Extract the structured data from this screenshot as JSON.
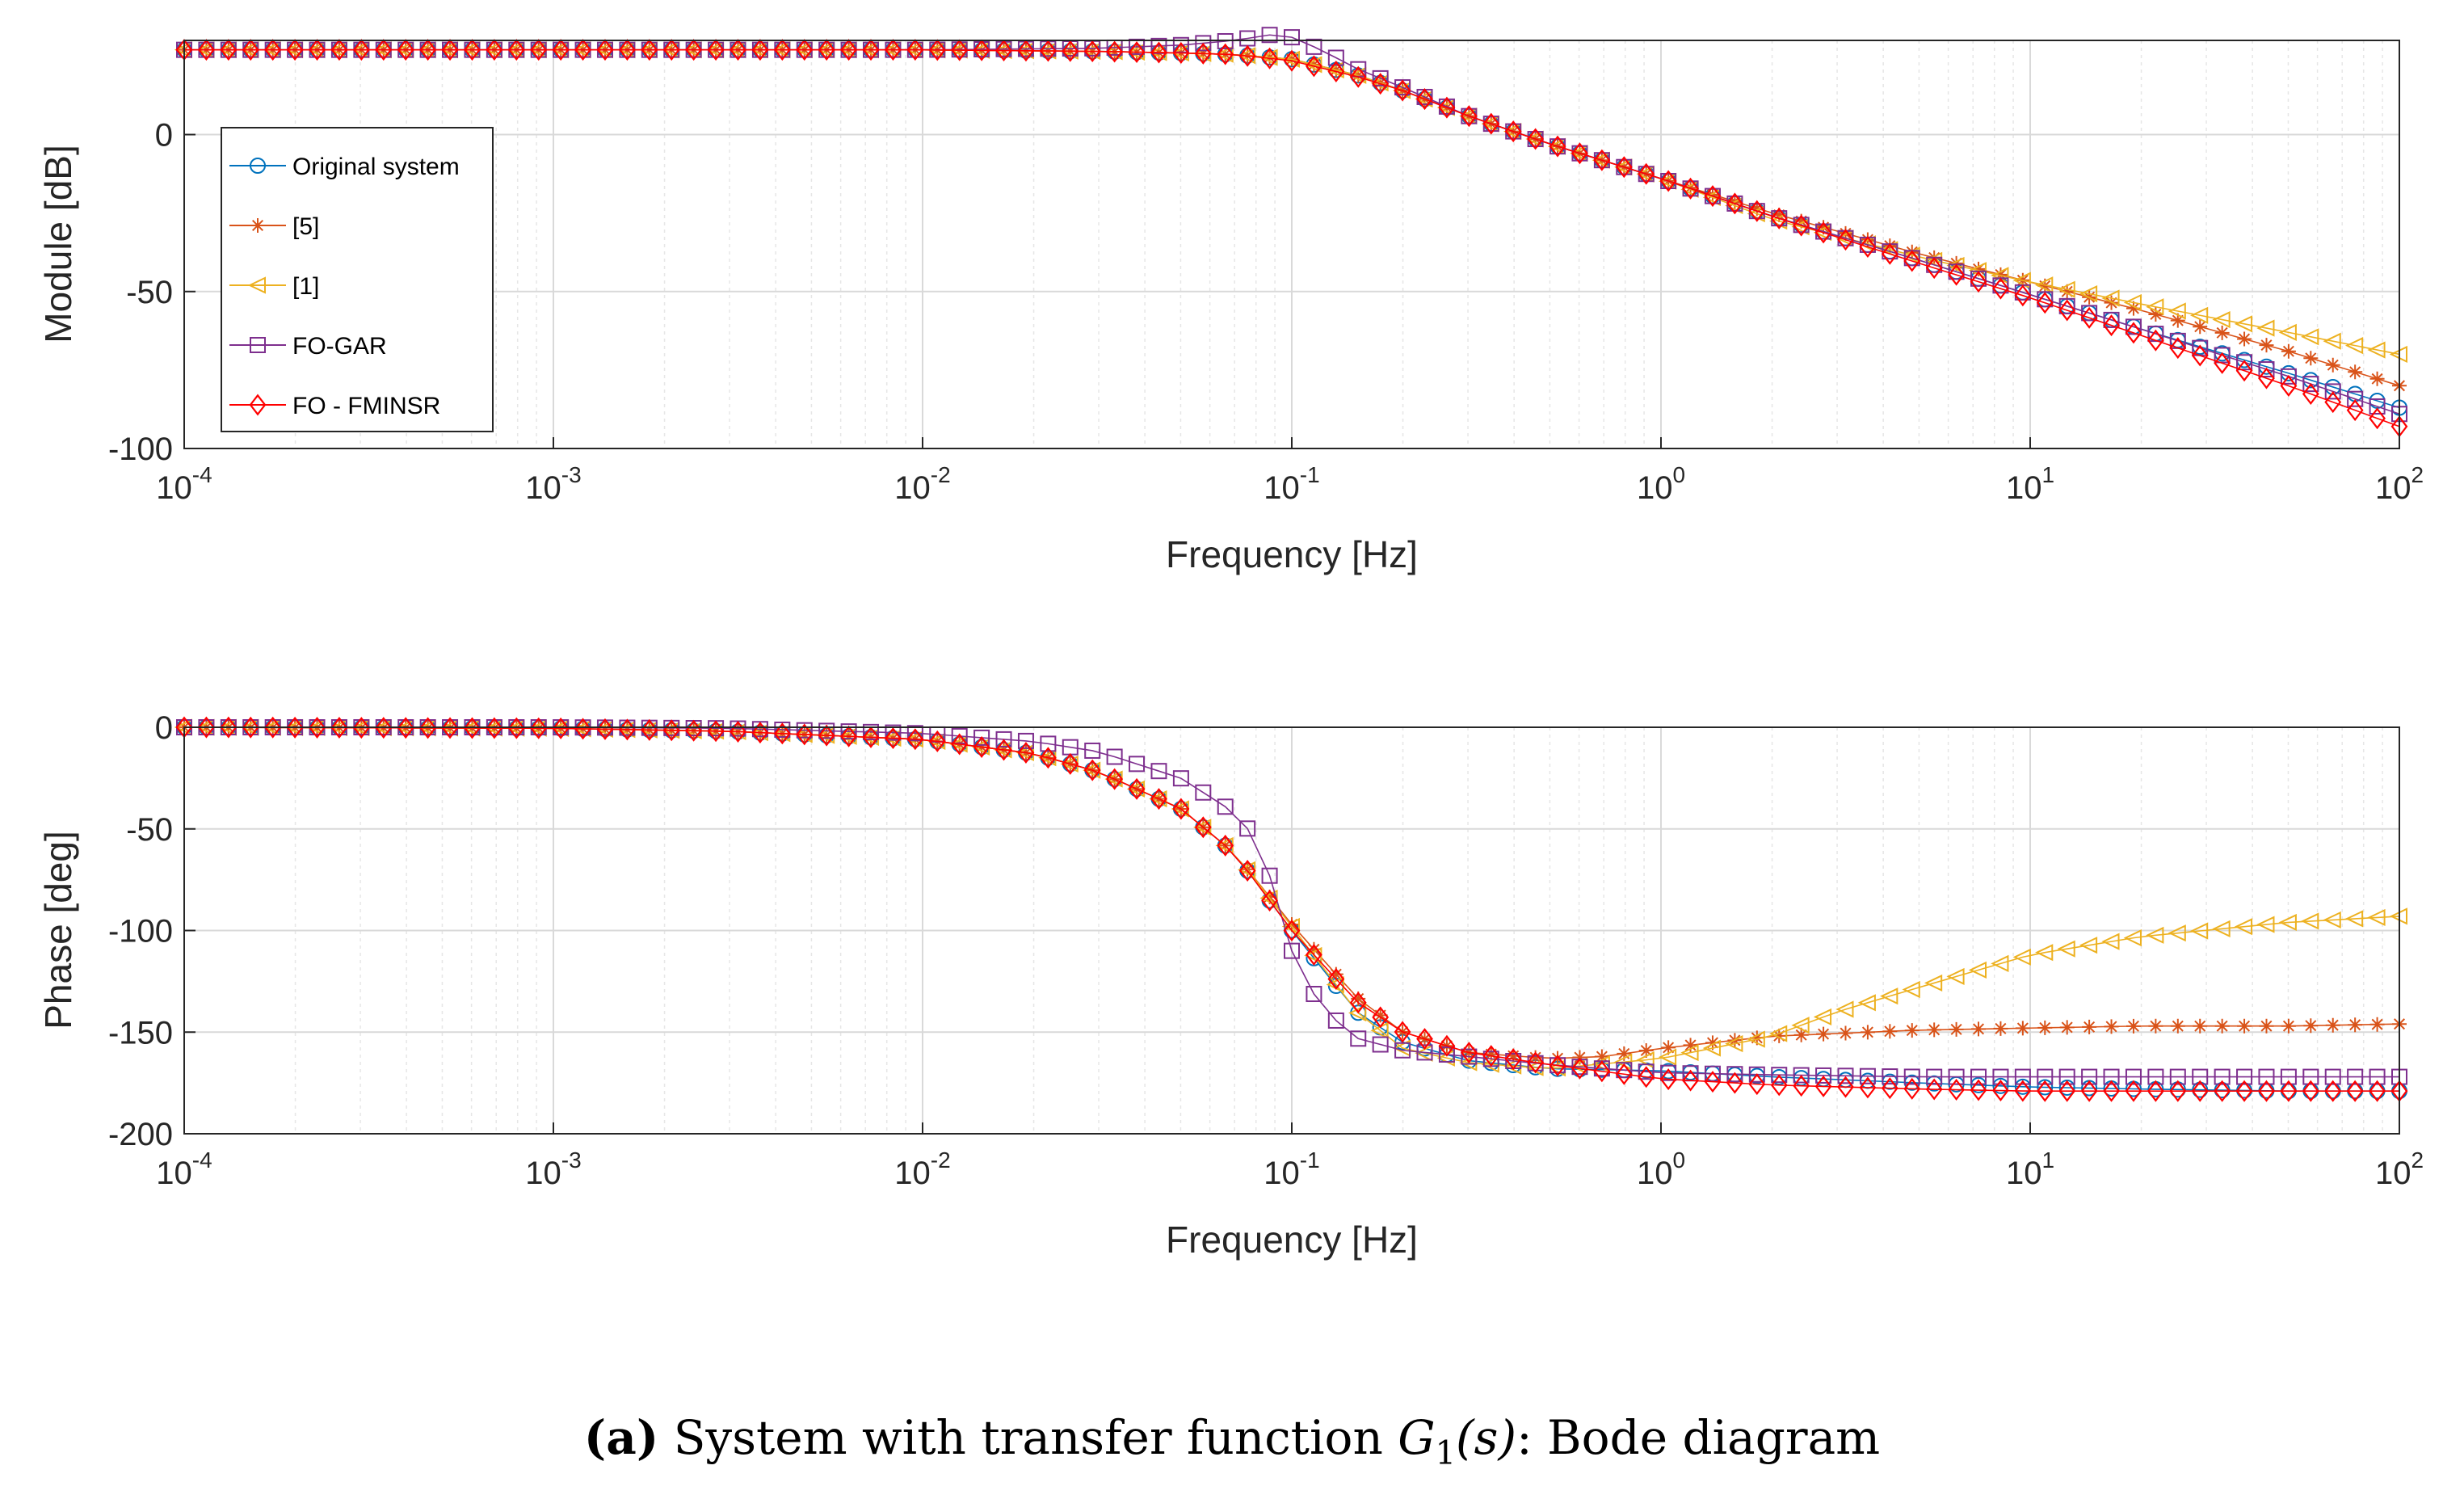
{
  "colors": {
    "original": "#0072BD",
    "ref5": "#D95319",
    "ref1": "#EDB120",
    "fogar": "#7E2F8E",
    "fominsr": "#FF0000"
  },
  "caption": {
    "letter": "(a)",
    "text_before": "System with transfer function",
    "math": "G",
    "math_sub": "1",
    "math_arg": "(s)",
    "text_after": ": Bode diagram"
  },
  "chart_data": [
    {
      "type": "line",
      "id": "magnitude",
      "title": "",
      "xlabel": "Frequency [Hz]",
      "ylabel": "Module [dB]",
      "xscale": "log",
      "xlim": [
        0.0001,
        100
      ],
      "ylim": [
        -100,
        30
      ],
      "yticks": [
        -100,
        -50,
        0
      ],
      "ytick_labels": [
        "-100",
        "-50",
        "0"
      ],
      "xtick_labels": [
        {
          "base": "10",
          "exp": "-4"
        },
        {
          "base": "10",
          "exp": "-3"
        },
        {
          "base": "10",
          "exp": "-2"
        },
        {
          "base": "10",
          "exp": "-1"
        },
        {
          "base": "10",
          "exp": "0"
        },
        {
          "base": "10",
          "exp": "1"
        },
        {
          "base": "10",
          "exp": "2"
        }
      ],
      "grid": true,
      "legend_position": "top-left",
      "legend": [
        "Original system",
        "[5]",
        "[1]",
        "FO-GAR",
        "FO - FMINSR"
      ],
      "series": [
        {
          "name": "Original system",
          "color_key": "original",
          "marker": "circle",
          "x": [
            0.0001,
            0.001,
            0.01,
            0.03,
            0.05,
            0.07,
            0.1,
            0.15,
            0.2,
            0.3,
            0.5,
            1,
            2,
            5,
            10,
            20,
            50,
            100
          ],
          "values": [
            27,
            27,
            27,
            26.5,
            26,
            25.5,
            24,
            19,
            14,
            6,
            -3,
            -14,
            -26,
            -40,
            -51,
            -62,
            -76,
            -87
          ]
        },
        {
          "name": "[5]",
          "color_key": "ref5",
          "marker": "star",
          "x": [
            0.0001,
            0.001,
            0.01,
            0.03,
            0.05,
            0.07,
            0.1,
            0.15,
            0.2,
            0.3,
            0.5,
            1,
            2,
            5,
            10,
            20,
            50,
            100
          ],
          "values": [
            27,
            27,
            27,
            26.5,
            26,
            25.5,
            24,
            19,
            14,
            6,
            -3,
            -14,
            -25,
            -38,
            -47,
            -56,
            -69,
            -80
          ]
        },
        {
          "name": "[1]",
          "color_key": "ref1",
          "marker": "triangle-left",
          "x": [
            0.0001,
            0.001,
            0.01,
            0.03,
            0.05,
            0.07,
            0.1,
            0.15,
            0.2,
            0.3,
            0.5,
            1,
            2,
            5,
            10,
            20,
            50,
            100
          ],
          "values": [
            27,
            27,
            27,
            26.5,
            26,
            25.5,
            24,
            19,
            14,
            6,
            -3,
            -14,
            -27,
            -39,
            -47,
            -54,
            -63,
            -70
          ]
        },
        {
          "name": "FO-GAR",
          "color_key": "fogar",
          "marker": "square",
          "x": [
            0.0001,
            0.001,
            0.01,
            0.03,
            0.05,
            0.07,
            0.09,
            0.1,
            0.12,
            0.15,
            0.2,
            0.3,
            0.5,
            1,
            2,
            5,
            10,
            20,
            50,
            100
          ],
          "values": [
            27,
            27,
            27,
            27.5,
            28.5,
            30,
            32,
            31,
            27,
            21,
            15,
            6,
            -3,
            -14,
            -26,
            -40,
            -51,
            -62,
            -77,
            -89
          ]
        },
        {
          "name": "FO - FMINSR",
          "color_key": "fominsr",
          "marker": "diamond",
          "x": [
            0.0001,
            0.001,
            0.01,
            0.03,
            0.05,
            0.07,
            0.1,
            0.15,
            0.2,
            0.3,
            0.5,
            1,
            2,
            5,
            10,
            20,
            50,
            100
          ],
          "values": [
            27,
            27,
            27,
            26.5,
            26,
            25.5,
            23.5,
            18.5,
            14,
            6,
            -3,
            -14,
            -26,
            -41,
            -52,
            -64,
            -80,
            -93
          ]
        }
      ]
    },
    {
      "type": "line",
      "id": "phase",
      "title": "",
      "xlabel": "Frequency [Hz]",
      "ylabel": "Phase [deg]",
      "xscale": "log",
      "xlim": [
        0.0001,
        100
      ],
      "ylim": [
        -200,
        0
      ],
      "yticks": [
        -200,
        -150,
        -100,
        -50,
        0
      ],
      "ytick_labels": [
        "-200",
        "-150",
        "-100",
        "-50",
        "0"
      ],
      "xtick_labels": [
        {
          "base": "10",
          "exp": "-4"
        },
        {
          "base": "10",
          "exp": "-3"
        },
        {
          "base": "10",
          "exp": "-2"
        },
        {
          "base": "10",
          "exp": "-1"
        },
        {
          "base": "10",
          "exp": "0"
        },
        {
          "base": "10",
          "exp": "1"
        },
        {
          "base": "10",
          "exp": "2"
        }
      ],
      "grid": true,
      "series": [
        {
          "name": "Original system",
          "color_key": "original",
          "marker": "circle",
          "x": [
            0.0001,
            0.001,
            0.003,
            0.01,
            0.02,
            0.03,
            0.05,
            0.07,
            0.1,
            0.15,
            0.2,
            0.3,
            0.5,
            1,
            2,
            5,
            10,
            20,
            50,
            100
          ],
          "values": [
            0,
            -0.5,
            -2,
            -6,
            -13,
            -22,
            -40,
            -62,
            -100,
            -140,
            -155,
            -164,
            -168,
            -169,
            -172,
            -175,
            -177,
            -178,
            -179,
            -179
          ]
        },
        {
          "name": "[5]",
          "color_key": "ref5",
          "marker": "star",
          "x": [
            0.0001,
            0.001,
            0.003,
            0.01,
            0.02,
            0.03,
            0.05,
            0.07,
            0.1,
            0.15,
            0.2,
            0.3,
            0.5,
            0.7,
            1,
            2,
            5,
            10,
            20,
            50,
            100
          ],
          "values": [
            0,
            -0.5,
            -2,
            -6,
            -13,
            -22,
            -40,
            -62,
            -97,
            -133,
            -150,
            -160,
            -163,
            -162,
            -158,
            -152,
            -149,
            -148,
            -147,
            -147,
            -146
          ]
        },
        {
          "name": "[1]",
          "color_key": "ref1",
          "marker": "triangle-left",
          "x": [
            0.0001,
            0.001,
            0.003,
            0.01,
            0.02,
            0.03,
            0.05,
            0.07,
            0.1,
            0.15,
            0.2,
            0.3,
            0.5,
            1,
            2,
            3,
            5,
            10,
            20,
            50,
            100
          ],
          "values": [
            0,
            -0.5,
            -2,
            -6,
            -13,
            -22,
            -40,
            -62,
            -98,
            -140,
            -158,
            -165,
            -168,
            -163,
            -152,
            -140,
            -128,
            -112,
            -103,
            -96,
            -93
          ]
        },
        {
          "name": "FO-GAR",
          "color_key": "fogar",
          "marker": "square",
          "x": [
            0.0001,
            0.001,
            0.003,
            0.01,
            0.02,
            0.03,
            0.05,
            0.07,
            0.08,
            0.09,
            0.1,
            0.12,
            0.15,
            0.2,
            0.3,
            0.5,
            1,
            2,
            5,
            10,
            20,
            50,
            100
          ],
          "values": [
            0,
            0,
            -0.5,
            -3,
            -7,
            -12,
            -25,
            -42,
            -55,
            -80,
            -110,
            -138,
            -153,
            -159,
            -162,
            -166,
            -170,
            -171,
            -172,
            -172,
            -172,
            -172,
            -172
          ]
        },
        {
          "name": "FO - FMINSR",
          "color_key": "fominsr",
          "marker": "diamond",
          "x": [
            0.0001,
            0.001,
            0.003,
            0.01,
            0.02,
            0.03,
            0.05,
            0.07,
            0.1,
            0.15,
            0.2,
            0.3,
            0.5,
            1,
            2,
            5,
            10,
            20,
            50,
            100
          ],
          "values": [
            0,
            -0.5,
            -2,
            -6,
            -13,
            -22,
            -40,
            -62,
            -100,
            -135,
            -150,
            -160,
            -166,
            -173,
            -176,
            -178,
            -179,
            -179,
            -179,
            -179
          ]
        }
      ]
    }
  ]
}
